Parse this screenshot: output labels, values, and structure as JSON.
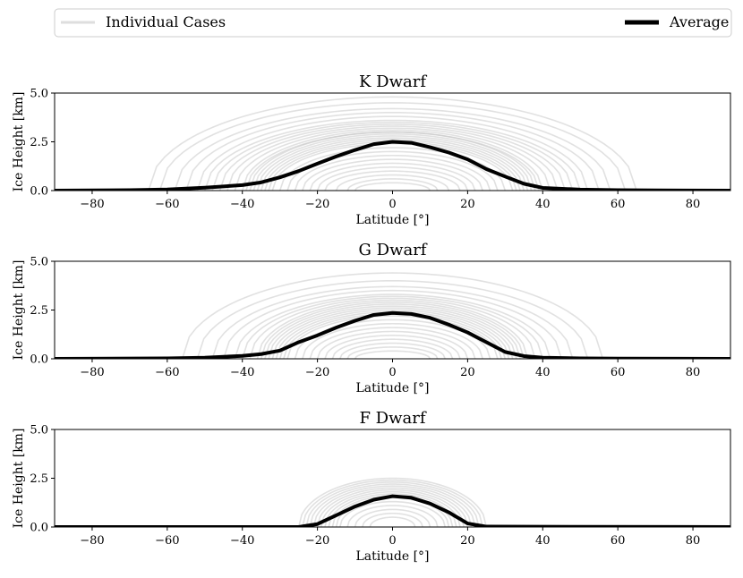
{
  "legend": {
    "individual_label": "Individual Cases",
    "average_label": "Average",
    "placement": "top, spanning full width"
  },
  "colors": {
    "individual": "#bdbdbd",
    "average": "#000000",
    "axes": "#000000"
  },
  "chart_data": [
    {
      "type": "line",
      "title": "K Dwarf",
      "xlabel": "Latitude [°]",
      "ylabel": "Ice Height [km]",
      "xlim": [
        -90,
        90
      ],
      "ylim": [
        0,
        5
      ],
      "xticks": [
        -80,
        -60,
        -40,
        -20,
        0,
        20,
        40,
        60,
        80
      ],
      "xtick_labels": [
        "−80",
        "−60",
        "−40",
        "−20",
        "0",
        "20",
        "40",
        "60",
        "80"
      ],
      "yticks": [
        0,
        2.5,
        5
      ],
      "ytick_labels": [
        "0.0",
        "2.5",
        "5.0"
      ],
      "individual_cases": [
        {
          "extent": 65,
          "peak": 4.8
        },
        {
          "extent": 62,
          "peak": 4.5
        },
        {
          "extent": 58,
          "peak": 4.2
        },
        {
          "extent": 55,
          "peak": 4.0
        },
        {
          "extent": 52,
          "peak": 3.8
        },
        {
          "extent": 50,
          "peak": 3.6
        },
        {
          "extent": 48,
          "peak": 3.5
        },
        {
          "extent": 46,
          "peak": 3.4
        },
        {
          "extent": 44,
          "peak": 3.3
        },
        {
          "extent": 42,
          "peak": 3.2
        },
        {
          "extent": 40,
          "peak": 3.1
        },
        {
          "extent": 39,
          "peak": 3.0
        },
        {
          "extent": 38,
          "peak": 3.0
        },
        {
          "extent": 37,
          "peak": 2.9
        },
        {
          "extent": 36,
          "peak": 2.8
        },
        {
          "extent": 35,
          "peak": 2.7
        },
        {
          "extent": 34,
          "peak": 2.6
        },
        {
          "extent": 33,
          "peak": 2.5
        },
        {
          "extent": 32,
          "peak": 2.4
        },
        {
          "extent": 30,
          "peak": 2.2
        },
        {
          "extent": 28,
          "peak": 2.0
        },
        {
          "extent": 26,
          "peak": 1.8
        },
        {
          "extent": 24,
          "peak": 1.6
        },
        {
          "extent": 22,
          "peak": 1.4
        },
        {
          "extent": 20,
          "peak": 1.2
        },
        {
          "extent": 18,
          "peak": 1.0
        },
        {
          "extent": 15,
          "peak": 0.8
        },
        {
          "extent": 12,
          "peak": 0.6
        },
        {
          "extent": 10,
          "peak": 0.4
        }
      ],
      "average": {
        "x": [
          -90,
          -70,
          -60,
          -50,
          -40,
          -35,
          -30,
          -25,
          -20,
          -15,
          -10,
          -5,
          0,
          5,
          10,
          15,
          20,
          25,
          30,
          35,
          40,
          50,
          60,
          70,
          90
        ],
        "y": [
          0,
          0.02,
          0.06,
          0.15,
          0.28,
          0.42,
          0.68,
          1.0,
          1.38,
          1.75,
          2.08,
          2.38,
          2.5,
          2.45,
          2.22,
          1.95,
          1.6,
          1.1,
          0.72,
          0.35,
          0.14,
          0.05,
          0.02,
          0.01,
          0
        ]
      }
    },
    {
      "type": "line",
      "title": "G Dwarf",
      "xlabel": "Latitude [°]",
      "ylabel": "Ice Height [km]",
      "xlim": [
        -90,
        90
      ],
      "ylim": [
        0,
        5
      ],
      "xticks": [
        -80,
        -60,
        -40,
        -20,
        0,
        20,
        40,
        60,
        80
      ],
      "xtick_labels": [
        "−80",
        "−60",
        "−40",
        "−20",
        "0",
        "20",
        "40",
        "60",
        "80"
      ],
      "yticks": [
        0,
        2.5,
        5
      ],
      "ytick_labels": [
        "0.0",
        "2.5",
        "5.0"
      ],
      "individual_cases": [
        {
          "extent": 56,
          "peak": 4.4
        },
        {
          "extent": 52,
          "peak": 4.0
        },
        {
          "extent": 48,
          "peak": 3.7
        },
        {
          "extent": 45,
          "peak": 3.5
        },
        {
          "extent": 42,
          "peak": 3.3
        },
        {
          "extent": 40,
          "peak": 3.2
        },
        {
          "extent": 38,
          "peak": 3.1
        },
        {
          "extent": 36,
          "peak": 3.0
        },
        {
          "extent": 35,
          "peak": 2.9
        },
        {
          "extent": 34,
          "peak": 2.8
        },
        {
          "extent": 33,
          "peak": 2.7
        },
        {
          "extent": 32,
          "peak": 2.6
        },
        {
          "extent": 31,
          "peak": 2.5
        },
        {
          "extent": 30,
          "peak": 2.4
        },
        {
          "extent": 29,
          "peak": 2.3
        },
        {
          "extent": 28,
          "peak": 2.2
        },
        {
          "extent": 26,
          "peak": 2.0
        },
        {
          "extent": 24,
          "peak": 1.8
        },
        {
          "extent": 22,
          "peak": 1.6
        },
        {
          "extent": 20,
          "peak": 1.4
        },
        {
          "extent": 18,
          "peak": 1.2
        },
        {
          "extent": 16,
          "peak": 1.0
        },
        {
          "extent": 14,
          "peak": 0.8
        },
        {
          "extent": 12,
          "peak": 0.6
        },
        {
          "extent": 10,
          "peak": 0.4
        }
      ],
      "average": {
        "x": [
          -90,
          -60,
          -50,
          -40,
          -35,
          -30,
          -25,
          -20,
          -15,
          -10,
          -5,
          0,
          5,
          10,
          15,
          20,
          25,
          30,
          35,
          40,
          50,
          60,
          90
        ],
        "y": [
          0,
          0.02,
          0.06,
          0.15,
          0.24,
          0.42,
          0.85,
          1.2,
          1.6,
          1.95,
          2.25,
          2.35,
          2.3,
          2.1,
          1.75,
          1.35,
          0.85,
          0.35,
          0.14,
          0.06,
          0.02,
          0.01,
          0
        ]
      }
    },
    {
      "type": "line",
      "title": "F Dwarf",
      "xlabel": "Latitude [°]",
      "ylabel": "Ice Height [km]",
      "xlim": [
        -90,
        90
      ],
      "ylim": [
        0,
        5
      ],
      "xticks": [
        -80,
        -60,
        -40,
        -20,
        0,
        20,
        40,
        60,
        80
      ],
      "xtick_labels": [
        "−80",
        "−60",
        "−40",
        "−20",
        "0",
        "20",
        "40",
        "60",
        "80"
      ],
      "yticks": [
        0,
        2.5,
        5
      ],
      "ytick_labels": [
        "0.0",
        "2.5",
        "5.0"
      ],
      "individual_cases": [
        {
          "extent": 25,
          "peak": 2.5
        },
        {
          "extent": 24,
          "peak": 2.4
        },
        {
          "extent": 23,
          "peak": 2.3
        },
        {
          "extent": 22,
          "peak": 2.2
        },
        {
          "extent": 21,
          "peak": 2.1
        },
        {
          "extent": 20,
          "peak": 2.0
        },
        {
          "extent": 19,
          "peak": 1.9
        },
        {
          "extent": 18,
          "peak": 1.8
        },
        {
          "extent": 17,
          "peak": 1.7
        },
        {
          "extent": 16,
          "peak": 1.6
        },
        {
          "extent": 15,
          "peak": 1.5
        },
        {
          "extent": 14,
          "peak": 1.3
        },
        {
          "extent": 12,
          "peak": 1.1
        },
        {
          "extent": 10,
          "peak": 0.9
        },
        {
          "extent": 8,
          "peak": 0.7
        },
        {
          "extent": 6,
          "peak": 0.5
        }
      ],
      "average": {
        "x": [
          -90,
          -25,
          -20,
          -15,
          -10,
          -5,
          0,
          5,
          10,
          15,
          20,
          25,
          90
        ],
        "y": [
          0,
          0.0,
          0.15,
          0.6,
          1.05,
          1.4,
          1.58,
          1.5,
          1.2,
          0.75,
          0.18,
          0.02,
          0
        ]
      }
    }
  ]
}
